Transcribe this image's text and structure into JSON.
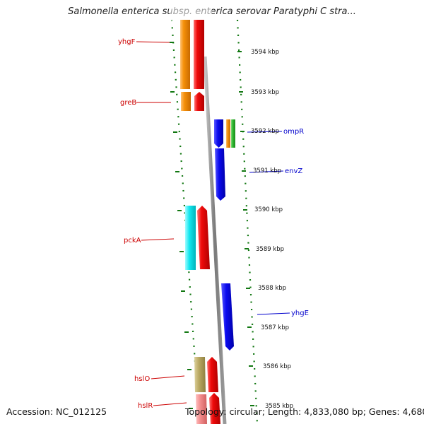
{
  "title": "Salmonella enterica subsp. enterica serovar Paratyphi C stra...",
  "footer": {
    "accession": "Accession: NC_012125",
    "topology": "Topology: circular; Length: 4,833,080 bp; Genes: 4,680"
  },
  "ticks": [
    "3594 kbp",
    "3593 kbp",
    "3592 kbp",
    "3591 kbp",
    "3590 kbp",
    "3589 kbp",
    "3588 kbp",
    "3587 kbp",
    "3586 kbp",
    "3585 kbp"
  ],
  "genes": {
    "left": [
      "yhgF",
      "greB",
      "pckA",
      "hslO",
      "hslR"
    ],
    "right": [
      "ompR",
      "envZ",
      "yhgE"
    ]
  },
  "colors": {
    "orange": "#f5900a",
    "red": "#ee0a0a",
    "blue": "#0a0aee",
    "cyan": "#10e6ee",
    "khaki": "#b9a862",
    "pink": "#f28c8c",
    "green": "#2db52d",
    "label_red": "#cc0000",
    "label_blue": "#0000cc",
    "dot_green": "#117711"
  }
}
